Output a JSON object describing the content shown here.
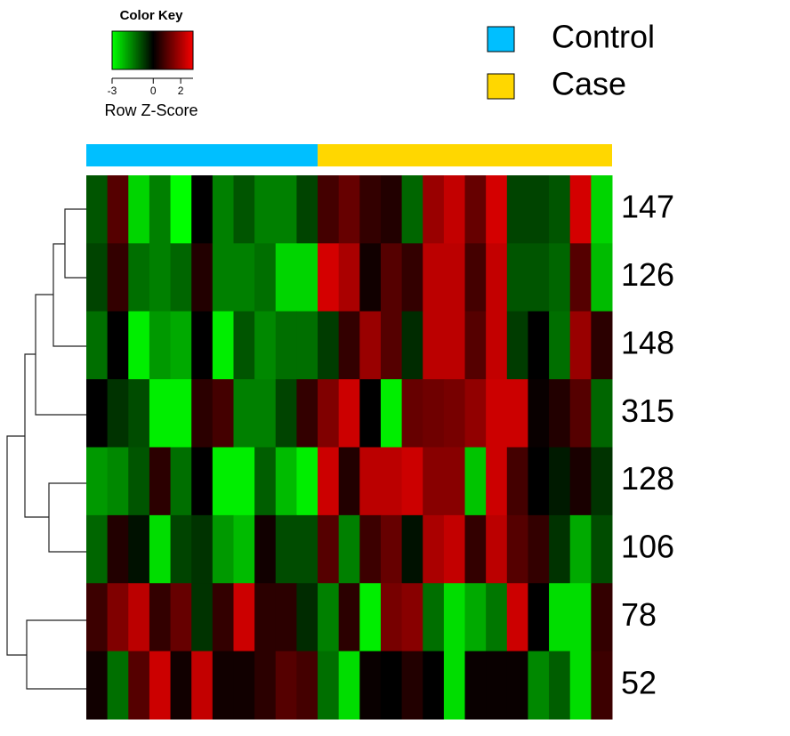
{
  "chart_data": {
    "type": "heatmap",
    "key_title": "Color Key",
    "key_label": "Row Z-Score",
    "key_lim": [
      -3,
      2.9
    ],
    "key_ticks": [
      -3,
      0,
      2
    ],
    "color_lim": [
      -3,
      3
    ],
    "colors": [
      "#00FF00",
      "#000000",
      "#FF0000"
    ],
    "groups": [
      {
        "name": "Control",
        "color": "#00BFFF",
        "count": 11
      },
      {
        "name": "Case",
        "color": "#FFD700",
        "count": 14
      }
    ],
    "rows": [
      "147",
      "126",
      "148",
      "315",
      "128",
      "106",
      "78",
      "52"
    ],
    "values": [
      [
        -1,
        1,
        -2.5,
        -1.5,
        -3,
        0,
        -1.5,
        -1,
        -1.5,
        -1.5,
        -0.8,
        0.8,
        1.2,
        0.6,
        0.4,
        -1.2,
        1.8,
        2.3,
        1.2,
        2.5,
        -0.8,
        -0.8,
        -1,
        2.5,
        -2.5
      ],
      [
        -0.8,
        0.6,
        -1.3,
        -1.5,
        -1.2,
        0.4,
        -1.5,
        -1.5,
        -1.3,
        -2.5,
        -2.5,
        2.5,
        2,
        0.2,
        1,
        0.6,
        2.2,
        2.2,
        0.8,
        2.3,
        -1,
        -1,
        -1.2,
        1,
        -2.2
      ],
      [
        -1.3,
        0,
        -2.8,
        -1.8,
        -2,
        0,
        -2.8,
        -1,
        -1.6,
        -1.3,
        -1.3,
        -0.7,
        0.6,
        1.8,
        1,
        -0.5,
        2.2,
        2.2,
        1,
        2.3,
        -0.7,
        0,
        -1.3,
        1.8,
        0.5
      ],
      [
        0,
        -0.6,
        -0.9,
        -2.8,
        -2.8,
        0.5,
        0.8,
        -1.5,
        -1.5,
        -0.8,
        0.6,
        1.5,
        2.4,
        0,
        -2.8,
        1.2,
        1.3,
        1.4,
        1.7,
        2.4,
        2.4,
        0.1,
        0.4,
        1,
        -1.2
      ],
      [
        -1.8,
        -1.6,
        -1,
        0.5,
        -1.3,
        0,
        -2.8,
        -2.8,
        -1.1,
        -2.2,
        -2.8,
        2.4,
        0.4,
        2.2,
        2.2,
        2.4,
        1.6,
        1.6,
        -2.3,
        2.4,
        0.8,
        0,
        -0.3,
        0.3,
        -0.6
      ],
      [
        -1.2,
        0.4,
        -0.2,
        -2.6,
        -0.8,
        -0.6,
        -1.8,
        -2.2,
        0.2,
        -0.9,
        -0.9,
        1,
        -1.5,
        0.7,
        1.2,
        -0.2,
        2,
        2.3,
        0.6,
        2.2,
        1,
        0.6,
        -0.6,
        -2,
        -0.9
      ],
      [
        0.7,
        1.5,
        2.2,
        0.6,
        1.2,
        -0.6,
        0.6,
        2.4,
        0.5,
        0.5,
        -0.5,
        -1.5,
        0.5,
        -2.8,
        1.4,
        1.6,
        -1.3,
        -2.6,
        -2,
        -1.4,
        2.4,
        0,
        -2.6,
        -2.6,
        0.6
      ],
      [
        0.2,
        -1.3,
        1,
        2.4,
        0.2,
        2.3,
        0.2,
        0.2,
        0.5,
        1,
        0.8,
        -1.3,
        -2.6,
        0.1,
        0,
        0.4,
        0,
        -2.6,
        0.1,
        0.1,
        0.1,
        -1.6,
        -1.1,
        -2.6,
        0.7
      ]
    ]
  }
}
